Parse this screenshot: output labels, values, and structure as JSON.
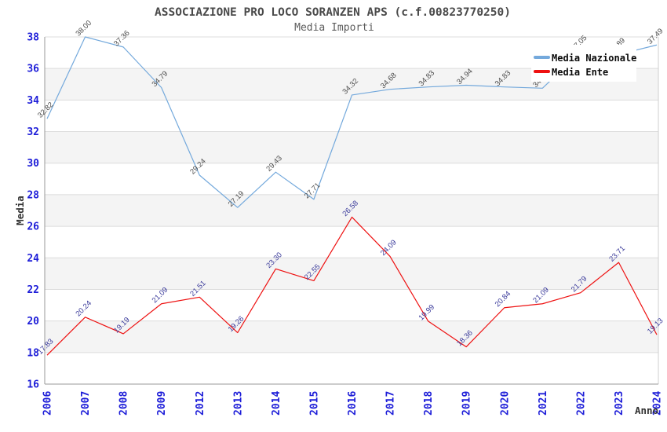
{
  "header": {
    "title": "ASSOCIAZIONE PRO LOCO SORANZEN APS (c.f.00823770250)",
    "subtitle": "Media Importi"
  },
  "colors": {
    "nazionale_line": "#74a9dc",
    "ente_line": "#ee1111",
    "tick_label": "#1d1dd8",
    "nazionale_data_label": "#4d4d4d",
    "ente_data_label": "#39399a",
    "band_gray": "#f4f4f4",
    "gridline": "#dcdcdc",
    "axis_border": "#999999",
    "right_border": "#cfcfcf"
  },
  "chart_data": {
    "type": "line",
    "title": "ASSOCIAZIONE PRO LOCO SORANZEN APS (c.f.00823770250)",
    "subtitle": "Media Importi",
    "xlabel": "Anno",
    "ylabel": "Media",
    "ylim": [
      16,
      38
    ],
    "ytick_step": 2,
    "grid": true,
    "banded_background": true,
    "legend_position": "top-right",
    "categories": [
      "2006",
      "2007",
      "2008",
      "2009",
      "2012",
      "2013",
      "2014",
      "2015",
      "2016",
      "2017",
      "2018",
      "2019",
      "2020",
      "2021",
      "2022",
      "2023",
      "2024"
    ],
    "series": [
      {
        "name": "Media Nazionale",
        "color": "#74a9dc",
        "label_color": "#4d4d4d",
        "values": [
          32.82,
          38.0,
          37.36,
          34.79,
          29.24,
          27.19,
          29.43,
          27.71,
          34.32,
          34.68,
          34.83,
          34.94,
          34.83,
          34.75,
          37.05,
          36.89,
          37.49
        ]
      },
      {
        "name": "Media Ente",
        "color": "#ee1111",
        "label_color": "#39399a",
        "values": [
          17.83,
          20.24,
          19.19,
          21.09,
          21.51,
          19.26,
          23.3,
          22.55,
          26.58,
          24.09,
          19.99,
          18.36,
          20.84,
          21.09,
          21.79,
          23.71,
          19.13
        ]
      }
    ]
  }
}
